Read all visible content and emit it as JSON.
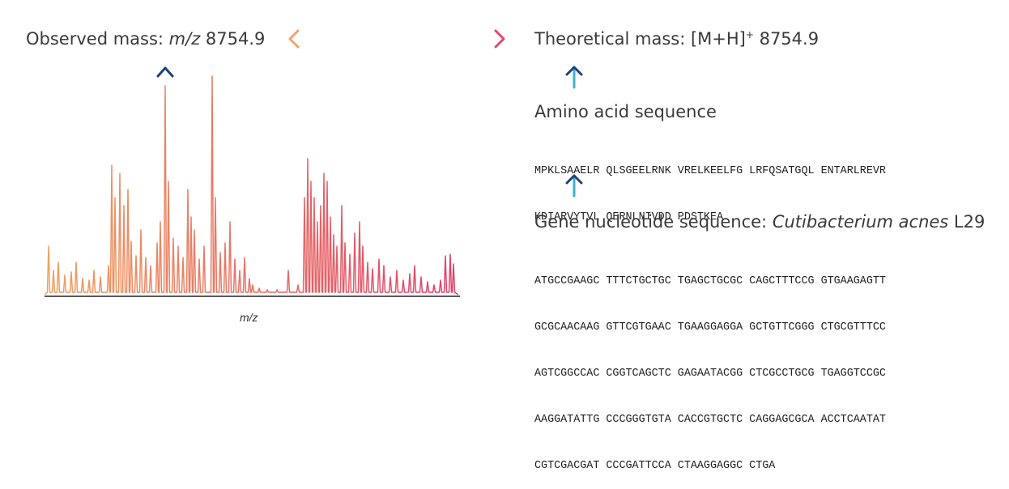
{
  "observed": {
    "prefix": "Observed mass: ",
    "italic": "m/z",
    "value": " 8754.9"
  },
  "theoretical": {
    "prefix": "Theoretical mass: [M+H]",
    "sup": "+",
    "value": " 8754.9"
  },
  "amino": {
    "title": "Amino acid sequence",
    "lines": [
      "MPKLSAAELR QLSGEELRNK VRELKEELFG LRFQSATGQL ENTARLREVR",
      "KDIARVYTVL QERNLNIVDD PDSTKEA"
    ]
  },
  "gene": {
    "prefix": "Gene nucleotide sequence: ",
    "italic": "Cutibacterium acnes",
    "suffix": " L29",
    "lines": [
      "ATGCCGAAGC TTTCTGCTGC TGAGCTGCGC CAGCTTTCCG GTGAAGAGTT",
      "GCGCAACAAG GTTCGTGAAC TGAAGGAGGA GCTGTTCGGG CTGCGTTTCC",
      "AGTCGGCCAC CGGTCAGCTC GAGAATACGG CTCGCCTGCG TGAGGTCCGC",
      "AAGGATATTG CCCGGGTGTA CACCGTGCTC CAGGAGCGCA ACCTCAATAT",
      "CGTCGACGAT CCCGATTCCA CTAAGGAGGC CTGA"
    ]
  },
  "spectrum": {
    "xlabel": "m/z",
    "gradient_start": "#f0a060",
    "gradient_end": "#e0406a"
  },
  "colors": {
    "arrow_navy": "#1f3f7a",
    "arrow_teal": "#3fb0c8",
    "double_arrow_left": "#f2a470",
    "double_arrow_right": "#e04a6e"
  }
}
